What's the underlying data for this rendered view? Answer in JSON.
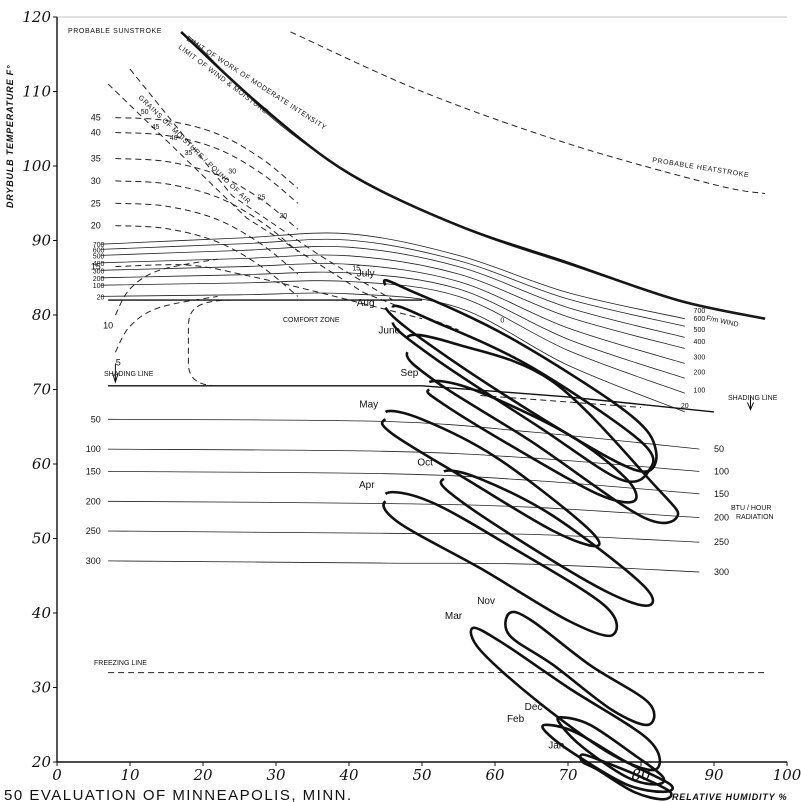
{
  "figure_title": "50 EVALUATION OF MINNEAPOLIS, MINN.",
  "chart_data": {
    "type": "line",
    "title": "",
    "xlabel": "RELATIVE HUMIDITY %",
    "ylabel": "DRYBULB TEMPERATURE F°",
    "xlim": [
      0,
      100
    ],
    "ylim": [
      20,
      120
    ],
    "x_ticks": [
      "0",
      "10",
      "20",
      "30",
      "40",
      "50",
      "60",
      "70",
      "80",
      "90",
      "100"
    ],
    "y_ticks": [
      "20",
      "30",
      "40",
      "50",
      "60",
      "70",
      "80",
      "90",
      "100",
      "110",
      "120"
    ],
    "region_labels": {
      "sunstroke": "PROBABLE SUNSTROKE",
      "heatstroke": "PROBABLE HEATSTROKE",
      "work_limit": "LIMIT OF WORK OF MODERATE INTENSITY",
      "wind_limit": "LIMIT OF WIND & MOISTURE",
      "moisture": "GRAINS OF MOISTURE / POUND OF AIR",
      "comfort": "COMFORT ZONE",
      "shading_left": "SHADING LINE",
      "shading_right": "SHADING LINE",
      "freezing": "FREEZING LINE",
      "wind_unit": "F/m WIND",
      "radiation_unit_1": "BTU / HOUR",
      "radiation_unit_2": "RADIATION"
    },
    "moisture_curves": [
      {
        "label": "45",
        "y": 106.5
      },
      {
        "label": "40",
        "y": 104.5
      },
      {
        "label": "35",
        "y": 101
      },
      {
        "label": "30",
        "y": 98
      },
      {
        "label": "25",
        "y": 95
      },
      {
        "label": "20",
        "y": 92
      },
      {
        "label": "15",
        "y": 86.5
      },
      {
        "label": "10",
        "y": 80
      },
      {
        "label": "5",
        "y": 75
      }
    ],
    "moisture_inner_labels": [
      "50",
      "45",
      "40",
      "35",
      "30",
      "25",
      "20",
      "15",
      "0"
    ],
    "wind_lines": [
      {
        "label": "700",
        "y": 89.5
      },
      {
        "label": "600",
        "y": 88.8
      },
      {
        "label": "500",
        "y": 88
      },
      {
        "label": "400",
        "y": 87
      },
      {
        "label": "300",
        "y": 86
      },
      {
        "label": "200",
        "y": 85
      },
      {
        "label": "100",
        "y": 84
      },
      {
        "label": "20",
        "y": 82.5
      }
    ],
    "wind_right_labels": [
      "700",
      "600",
      "500",
      "400",
      "300",
      "200",
      "100",
      "20"
    ],
    "radiation_lines": [
      {
        "label": "50",
        "y": 66
      },
      {
        "label": "100",
        "y": 62
      },
      {
        "label": "150",
        "y": 59
      },
      {
        "label": "200",
        "y": 55
      },
      {
        "label": "250",
        "y": 51
      },
      {
        "label": "300",
        "y": 47
      }
    ],
    "shading_line_y": 70.5,
    "freezing_line_y": 32,
    "comfort_zone": {
      "rh_range": [
        20,
        50
      ],
      "temp_range": [
        70.5,
        82
      ]
    },
    "months": [
      {
        "name": "July",
        "pts": [
          [
            45,
            84
          ],
          [
            49,
            83
          ],
          [
            62,
            77
          ],
          [
            78,
            67
          ],
          [
            82,
            62
          ],
          [
            80,
            59
          ],
          [
            70,
            64
          ],
          [
            54,
            74
          ],
          [
            45,
            81
          ]
        ]
      },
      {
        "name": "Aug",
        "pts": [
          [
            46,
            81
          ],
          [
            52,
            79
          ],
          [
            65,
            73
          ],
          [
            80,
            63
          ],
          [
            81,
            59
          ],
          [
            77,
            58
          ],
          [
            66,
            65
          ],
          [
            52,
            74
          ],
          [
            46,
            79
          ]
        ]
      },
      {
        "name": "June",
        "pts": [
          [
            48,
            77
          ],
          [
            55,
            76
          ],
          [
            68,
            71
          ],
          [
            82,
            57
          ],
          [
            85,
            53
          ],
          [
            80,
            53
          ],
          [
            65,
            63
          ],
          [
            52,
            71
          ],
          [
            48,
            75
          ]
        ]
      },
      {
        "name": "Sep",
        "pts": [
          [
            51,
            71
          ],
          [
            57,
            70
          ],
          [
            70,
            64
          ],
          [
            78,
            58
          ],
          [
            79,
            55
          ],
          [
            74,
            56
          ],
          [
            63,
            62
          ],
          [
            53,
            68
          ],
          [
            51,
            70
          ]
        ]
      },
      {
        "name": "May",
        "pts": [
          [
            45,
            67
          ],
          [
            50,
            66
          ],
          [
            60,
            61
          ],
          [
            72,
            52
          ],
          [
            74,
            49
          ],
          [
            68,
            51
          ],
          [
            56,
            58
          ],
          [
            46,
            64
          ],
          [
            45,
            66
          ]
        ]
      },
      {
        "name": "Oct",
        "pts": [
          [
            53,
            59
          ],
          [
            58,
            58
          ],
          [
            68,
            53
          ],
          [
            80,
            44
          ],
          [
            81,
            41
          ],
          [
            75,
            43
          ],
          [
            63,
            50
          ],
          [
            54,
            56
          ],
          [
            53,
            58
          ]
        ]
      },
      {
        "name": "Apr",
        "pts": [
          [
            45,
            56
          ],
          [
            51,
            55
          ],
          [
            62,
            49
          ],
          [
            75,
            41
          ],
          [
            76,
            37
          ],
          [
            70,
            39
          ],
          [
            58,
            46
          ],
          [
            47,
            52
          ],
          [
            45,
            55
          ]
        ]
      },
      {
        "name": "Nov",
        "pts": [
          [
            62,
            40
          ],
          [
            65,
            39
          ],
          [
            73,
            33
          ],
          [
            81,
            28
          ],
          [
            81,
            25
          ],
          [
            76,
            27
          ],
          [
            68,
            33
          ],
          [
            62,
            37
          ],
          [
            62,
            40
          ]
        ]
      },
      {
        "name": "Mar",
        "pts": [
          [
            57,
            38
          ],
          [
            61,
            36
          ],
          [
            70,
            30
          ],
          [
            81,
            23
          ],
          [
            82,
            19
          ],
          [
            76,
            21
          ],
          [
            66,
            28
          ],
          [
            58,
            35
          ],
          [
            57,
            38
          ]
        ]
      },
      {
        "name": "Dec",
        "pts": [
          [
            69,
            26
          ],
          [
            73,
            25
          ],
          [
            79,
            21
          ],
          [
            83,
            18
          ],
          [
            82,
            17
          ],
          [
            78,
            18
          ],
          [
            72,
            22
          ],
          [
            69,
            25
          ],
          [
            69,
            26
          ]
        ]
      },
      {
        "name": "Feb",
        "pts": [
          [
            67,
            25
          ],
          [
            71,
            24
          ],
          [
            78,
            20
          ],
          [
            84,
            17
          ],
          [
            83,
            16
          ],
          [
            78,
            17
          ],
          [
            71,
            21
          ],
          [
            67,
            24
          ],
          [
            67,
            25
          ]
        ]
      },
      {
        "name": "Jan",
        "pts": [
          [
            72,
            21
          ],
          [
            75,
            20
          ],
          [
            80,
            18
          ],
          [
            84,
            16
          ],
          [
            83,
            15
          ],
          [
            79,
            16
          ],
          [
            74,
            19
          ],
          [
            72,
            20
          ],
          [
            72,
            21
          ]
        ]
      }
    ]
  }
}
